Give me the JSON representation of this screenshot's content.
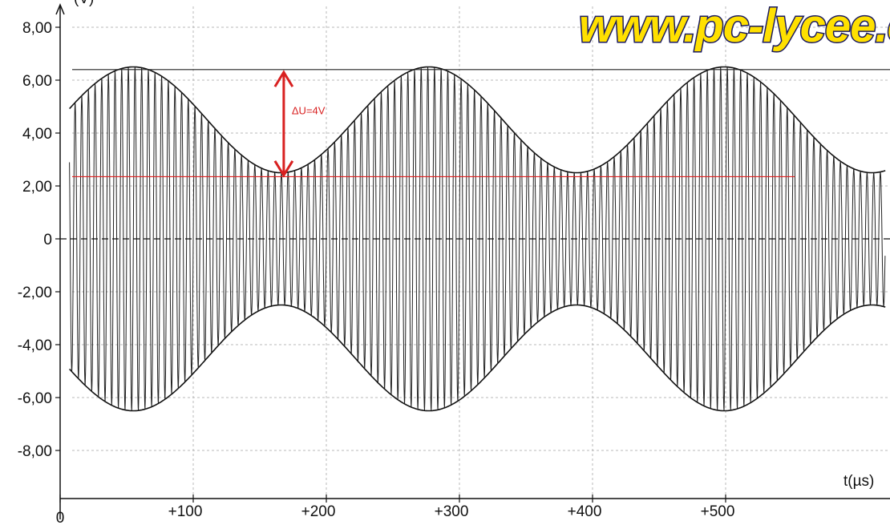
{
  "watermark": "www.pc-lycee.c",
  "chart_data": {
    "type": "line",
    "title": "",
    "xlabel": "t(µs)",
    "ylabel": "(V)",
    "xlim": [
      0,
      620
    ],
    "ylim": [
      -9.5,
      8.8
    ],
    "x_ticks": [
      {
        "value": 0,
        "label": "0"
      },
      {
        "value": 100,
        "label": "+100"
      },
      {
        "value": 200,
        "label": "+200"
      },
      {
        "value": 300,
        "label": "+300"
      },
      {
        "value": 400,
        "label": "+400"
      },
      {
        "value": 500,
        "label": "+500"
      }
    ],
    "y_ticks": [
      {
        "value": 8,
        "label": "8,00"
      },
      {
        "value": 6,
        "label": "6,00"
      },
      {
        "value": 4,
        "label": "4,00"
      },
      {
        "value": 2,
        "label": "2,00"
      },
      {
        "value": 0,
        "label": "0"
      },
      {
        "value": -2,
        "label": "-2,00"
      },
      {
        "value": -4,
        "label": "-4,00"
      },
      {
        "value": -6,
        "label": "-6,00"
      },
      {
        "value": -8,
        "label": "-8,00"
      }
    ],
    "grid": true,
    "signal": {
      "description": "amplitude-modulated sine wave",
      "envelope_max": 6.5,
      "envelope_min": 2.5,
      "envelope_maxima_t": [
        55,
        277,
        497
      ],
      "envelope_minima_t": [
        166,
        386
      ],
      "modulation_period_us": 222,
      "carrier_frequency_mhz": 0.2,
      "x_start": 7,
      "x_end": 620
    },
    "reference_lines": [
      {
        "name": "max",
        "value": 6.4,
        "color": "#222222"
      },
      {
        "name": "min",
        "value": 2.35,
        "color": "#e02020"
      }
    ],
    "annotations": [
      {
        "text": "ΔU=4V",
        "x": 168,
        "from": 2.4,
        "to": 6.3,
        "color": "#d82020"
      }
    ]
  }
}
